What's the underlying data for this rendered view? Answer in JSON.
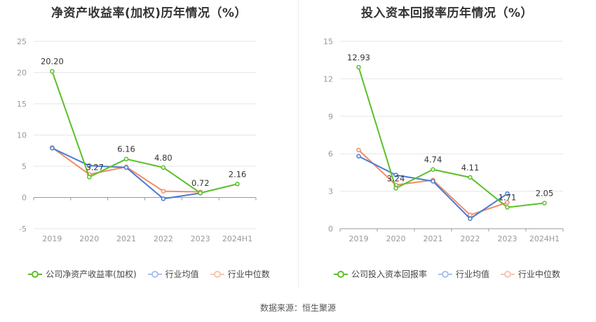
{
  "colors": {
    "company": "#5cbf2a",
    "industry_avg": "#4a7bd4",
    "industry_median": "#f28c64",
    "grid": "#e6e6e6",
    "axis": "#999999"
  },
  "footer": "数据来源：恒生聚源",
  "chart_data": [
    {
      "type": "line",
      "title": "净资产收益率(加权)历年情况（%）",
      "categories": [
        "2019",
        "2020",
        "2021",
        "2022",
        "2023",
        "2024H1"
      ],
      "y_ticks": [
        -5,
        0,
        5,
        10,
        15,
        20,
        25
      ],
      "ylim": [
        -5,
        25
      ],
      "grid": true,
      "legend_position": "bottom",
      "series": [
        {
          "name": "公司净资产收益率(加权)",
          "color_key": "company",
          "labeled": true,
          "values": [
            20.2,
            3.27,
            6.16,
            4.8,
            0.72,
            2.16
          ],
          "labels": [
            "20.20",
            "3.27",
            "6.16",
            "4.80",
            "0.72",
            "2.16"
          ]
        },
        {
          "name": "行业均值",
          "color_key": "industry_avg",
          "labeled": false,
          "values": [
            7.9,
            5.1,
            4.8,
            -0.2,
            0.7,
            null
          ]
        },
        {
          "name": "行业中位数",
          "color_key": "industry_median",
          "labeled": false,
          "values": [
            8.0,
            3.7,
            4.9,
            1.0,
            0.9,
            null
          ]
        }
      ]
    },
    {
      "type": "line",
      "title": "投入资本回报率历年情况（%）",
      "categories": [
        "2019",
        "2020",
        "2021",
        "2022",
        "2023",
        "2024H1"
      ],
      "y_ticks": [
        0,
        3,
        6,
        9,
        12,
        15
      ],
      "ylim": [
        0,
        15
      ],
      "grid": true,
      "legend_position": "bottom",
      "series": [
        {
          "name": "公司投入资本回报率",
          "color_key": "company",
          "labeled": true,
          "values": [
            12.93,
            3.24,
            4.74,
            4.11,
            1.71,
            2.05
          ],
          "labels": [
            "12.93",
            "3.24",
            "4.74",
            "4.11",
            "1.71",
            "2.05"
          ]
        },
        {
          "name": "行业均值",
          "color_key": "industry_avg",
          "labeled": false,
          "values": [
            5.8,
            4.3,
            3.8,
            0.8,
            2.8,
            null
          ]
        },
        {
          "name": "行业中位数",
          "color_key": "industry_median",
          "labeled": false,
          "values": [
            6.3,
            3.5,
            3.9,
            1.1,
            2.1,
            null
          ]
        }
      ]
    }
  ]
}
